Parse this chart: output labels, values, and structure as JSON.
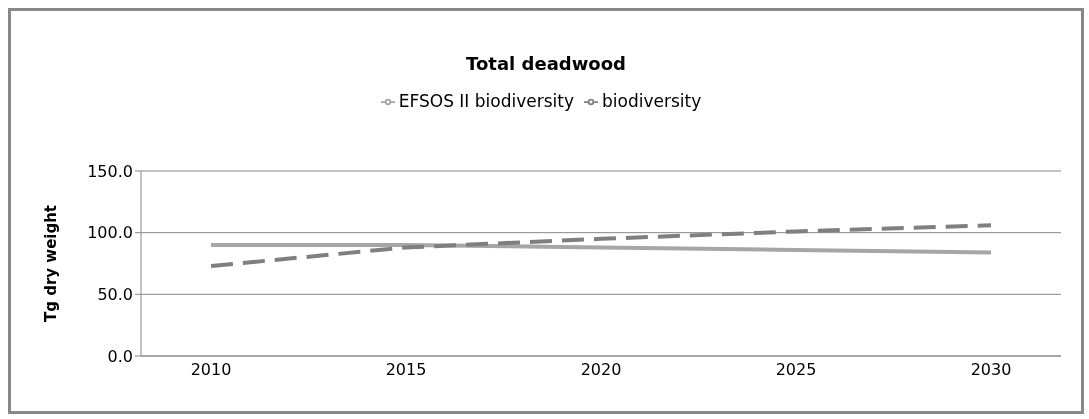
{
  "chart_data": {
    "type": "line",
    "title": "Total deadwood",
    "ylabel": "Tg dry weight",
    "categories": [
      "2010",
      "2015",
      "2020",
      "2025",
      "2030"
    ],
    "series": [
      {
        "name": "EFSOS II biodiversity",
        "color": "#a6a6a6",
        "line_style": "solid",
        "values": [
          90,
          90,
          88,
          86,
          84
        ]
      },
      {
        "name": "biodiversity",
        "color": "#7f7f7f",
        "line_style": "dashed",
        "values": [
          73,
          88,
          95,
          101,
          106
        ]
      }
    ],
    "ylim": [
      0,
      150
    ],
    "yticks": [
      {
        "value": 0,
        "label": "0.0"
      },
      {
        "value": 50,
        "label": "50.0"
      },
      {
        "value": 100,
        "label": "100.0"
      },
      {
        "value": 150,
        "label": "150.0"
      }
    ],
    "grid": "y",
    "legend": "top",
    "marker": "none"
  }
}
